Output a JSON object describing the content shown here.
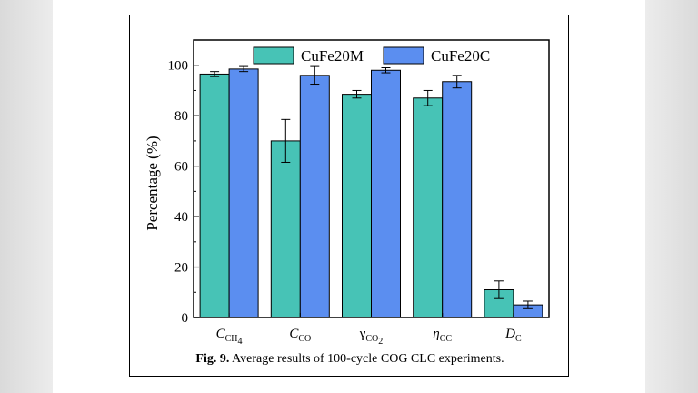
{
  "caption": {
    "label": "Fig. 9.",
    "text": "Average results of 100-cycle COG CLC experiments."
  },
  "colors": {
    "CuFe20M": "#47c3b6",
    "CuFe20C": "#5b8ef0"
  },
  "chart_data": {
    "type": "bar",
    "categories": [
      {
        "main": "C",
        "sub": "CH4",
        "sub_parts": [
          "CH",
          "4"
        ],
        "main_italic": true
      },
      {
        "main": "C",
        "sub": "CO",
        "sub_parts": [
          "CO"
        ],
        "main_italic": true
      },
      {
        "main": "γ",
        "sub": "CO2",
        "sub_parts": [
          "CO",
          "2"
        ],
        "main_italic": false
      },
      {
        "main": "η",
        "sub": "CC",
        "sub_parts": [
          "CC"
        ],
        "main_italic": true
      },
      {
        "main": "D",
        "sub": "C",
        "sub_parts": [
          "C"
        ],
        "main_italic": true
      }
    ],
    "series": [
      {
        "name": "CuFe20M",
        "values": [
          96.5,
          70,
          88.5,
          87,
          11
        ],
        "errors": [
          1,
          8.5,
          1.5,
          3,
          3.5
        ]
      },
      {
        "name": "CuFe20C",
        "values": [
          98.5,
          96,
          98,
          93.5,
          5
        ],
        "errors": [
          1,
          3.5,
          1,
          2.5,
          1.5
        ]
      }
    ],
    "ylabel": "Percentage (%)",
    "xlabel": "",
    "ylim": [
      0,
      110
    ],
    "yticks": [
      0,
      20,
      40,
      60,
      80,
      100
    ],
    "legend_position": "top-center",
    "grid": false
  }
}
